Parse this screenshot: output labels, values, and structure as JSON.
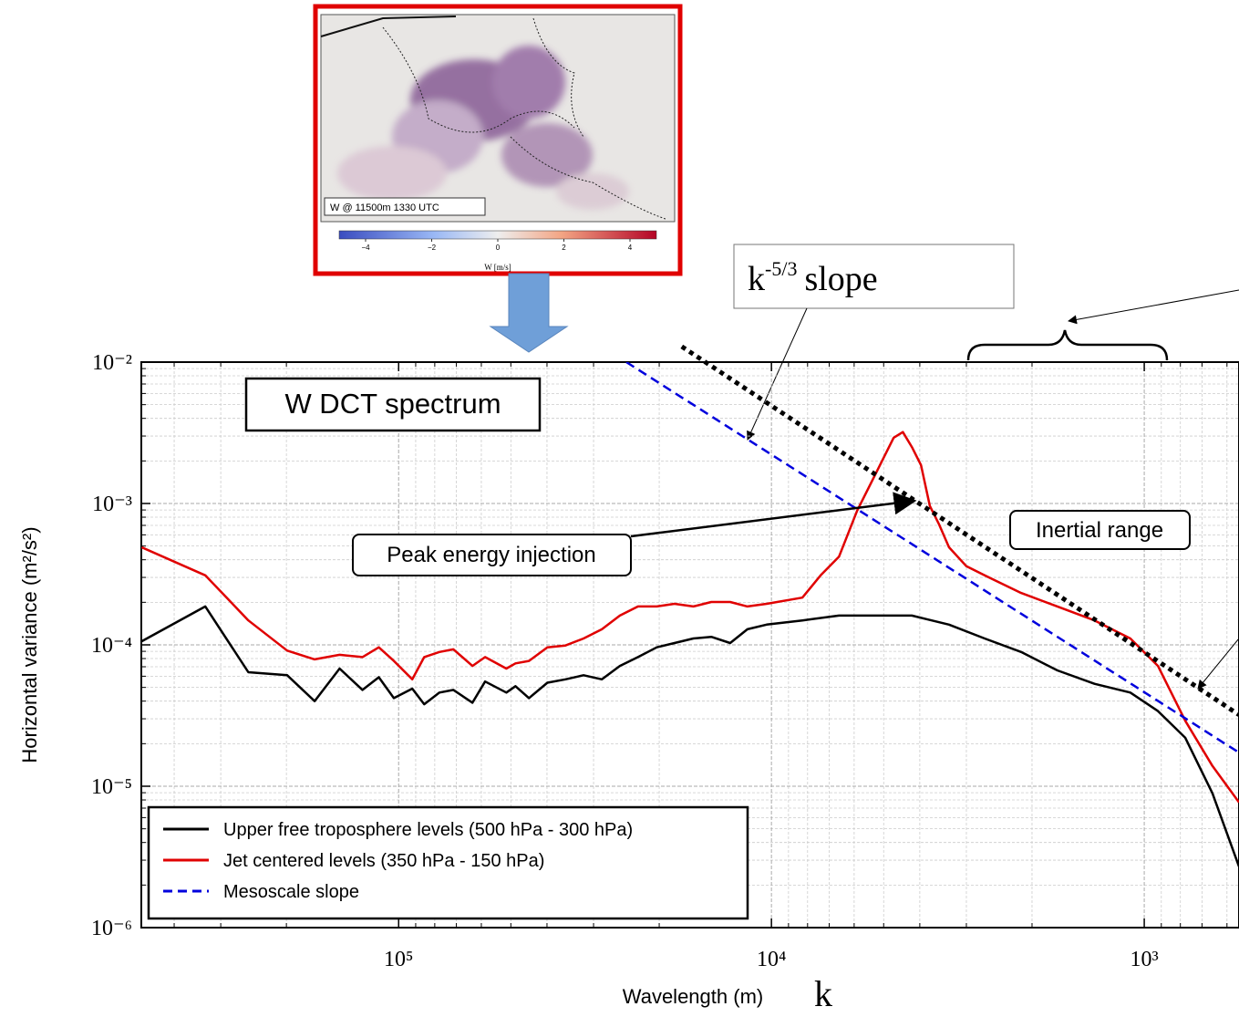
{
  "chart_data": {
    "type": "line",
    "x_label": "Wavelength (m)",
    "x_symbol": "k",
    "y_label": "Horizontal variance (m²/s²)",
    "log_x": true,
    "log_y": true,
    "x_reversed": true,
    "grid": true,
    "minor_grid": true,
    "legend": "lower left",
    "xlim": [
      490000,
      557
    ],
    "ylim": [
      1e-06,
      0.01
    ],
    "xticks": [
      {
        "value": 100000,
        "label": "10⁵"
      },
      {
        "value": 10000,
        "label": "10⁴"
      },
      {
        "value": 1000,
        "label": "10³"
      }
    ],
    "yticks": [
      {
        "value": 0.01,
        "label": "10⁻²"
      },
      {
        "value": 0.001,
        "label": "10⁻³"
      },
      {
        "value": 0.0001,
        "label": "10⁻⁴"
      },
      {
        "value": 1e-05,
        "label": "10⁻⁵"
      },
      {
        "value": 1e-06,
        "label": "10⁻⁶"
      }
    ],
    "series": [
      {
        "name": "Upper free troposphere levels (500 hPa - 300 hPa)",
        "color": "#000000",
        "x": [
          489000,
          330000,
          253000,
          199000,
          168000,
          144000,
          125000,
          113000,
          103000,
          91900,
          85400,
          77700,
          71300,
          63400,
          58600,
          51400,
          48600,
          44700,
          39900,
          35700,
          31900,
          28500,
          25500,
          22800,
          20300,
          18200,
          16200,
          14500,
          12900,
          11600,
          10300,
          8260,
          6590,
          5260,
          4200,
          3340,
          2680,
          2140,
          1710,
          1360,
          1090,
          919,
          776,
          656,
          557
        ],
        "values": [
          0.000106,
          0.000187,
          6.4e-05,
          6.1e-05,
          4e-05,
          6.8e-05,
          4.8e-05,
          5.9e-05,
          4.2e-05,
          4.9e-05,
          3.8e-05,
          4.6e-05,
          4.8e-05,
          3.9e-05,
          5.5e-05,
          4.6e-05,
          5.1e-05,
          4.2e-05,
          5.4e-05,
          5.7e-05,
          6.1e-05,
          5.7e-05,
          7.1e-05,
          8.2e-05,
          9.6e-05,
          0.000103,
          0.000111,
          0.000114,
          0.000103,
          0.000129,
          0.000139,
          0.000149,
          0.000161,
          0.000161,
          0.000161,
          0.000139,
          0.000111,
          8.9e-05,
          6.6e-05,
          5.3e-05,
          4.6e-05,
          3.4e-05,
          2.2e-05,
          8.9e-06,
          2.7e-06
        ]
      },
      {
        "name": "Jet centered levels (350 hPa - 150 hPa)",
        "color": "#e00000",
        "x": [
          489000,
          330000,
          253000,
          199000,
          168000,
          144000,
          125000,
          113000,
          103000,
          91900,
          85400,
          77700,
          71300,
          63400,
          58600,
          51400,
          48600,
          44700,
          39900,
          35700,
          31900,
          28500,
          25500,
          22800,
          20300,
          18200,
          16200,
          14500,
          12900,
          11600,
          10300,
          8260,
          7380,
          6590,
          5890,
          5260,
          4700,
          4440,
          4200,
          3970,
          3760,
          3550,
          3340,
          3000,
          2680,
          2140,
          1710,
          1360,
          1090,
          919,
          776,
          656,
          557
        ],
        "values": [
          0.00049,
          0.00031,
          0.000149,
          9.1e-05,
          7.9e-05,
          8.5e-05,
          8.2e-05,
          9.6e-05,
          7.7e-05,
          5.7e-05,
          8.2e-05,
          8.9e-05,
          9.3e-05,
          7.1e-05,
          8.2e-05,
          6.8e-05,
          7.4e-05,
          7.7e-05,
          9.6e-05,
          9.9e-05,
          0.000111,
          0.000129,
          0.000161,
          0.000187,
          0.000187,
          0.000195,
          0.000187,
          0.000201,
          0.000201,
          0.000187,
          0.000195,
          0.000216,
          0.00031,
          0.00042,
          0.00089,
          0.00161,
          0.00292,
          0.0032,
          0.00251,
          0.00187,
          0.00096,
          0.00071,
          0.00049,
          0.00036,
          0.00031,
          0.000233,
          0.000187,
          0.000149,
          0.000111,
          7.1e-05,
          2.9e-05,
          1.39e-05,
          7.7e-06
        ]
      },
      {
        "name": "Mesoscale slope",
        "color": "#0000dd",
        "dash": true,
        "x": [
          24500,
          557
        ],
        "values": [
          0.01,
          1.73e-05
        ]
      }
    ],
    "slope_line": {
      "x": [
        17400,
        557
      ],
      "values": [
        0.0129,
        3.2e-05
      ],
      "color": "#000000"
    },
    "annotations": {
      "title_box": "W DCT spectrum",
      "peak": "Peak energy injection",
      "inertial": "Inertial range",
      "slope": {
        "base": "k",
        "exponent": "-5/3",
        "text": "slope"
      }
    },
    "inset": {
      "label": "W @ 11500m 1330 UTC",
      "colorbar_label": "W [m/s]",
      "colorbar_lim": [
        -4.8,
        4.8
      ],
      "colorbar_ticks": [
        {
          "value": -4,
          "label": "−4"
        },
        {
          "value": -2,
          "label": "−2"
        },
        0,
        2,
        4
      ]
    }
  }
}
